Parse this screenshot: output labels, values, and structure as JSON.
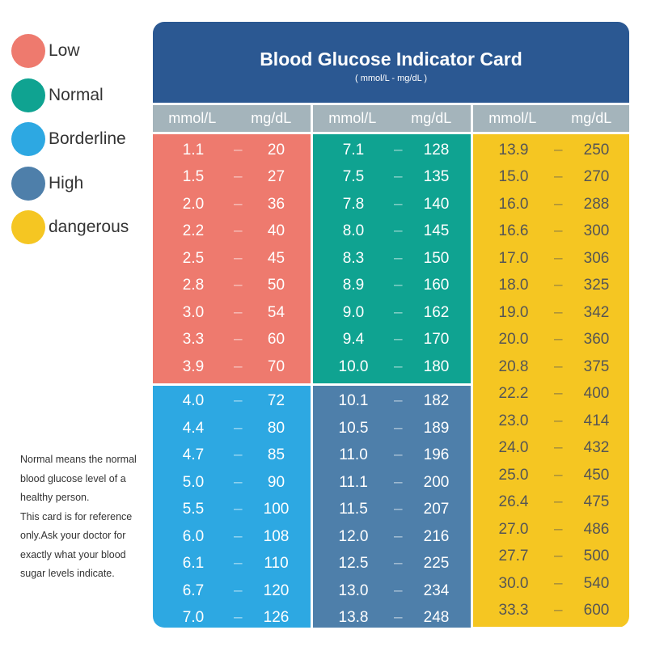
{
  "legend": [
    {
      "label": "Low",
      "color": "#EE7A6E"
    },
    {
      "label": "Normal",
      "color": "#0FA391"
    },
    {
      "label": "Borderline",
      "color": "#2DA8E2"
    },
    {
      "label": "High",
      "color": "#4E7FAA"
    },
    {
      "label": "dangerous",
      "color": "#F5C622"
    }
  ],
  "note": [
    "Normal means the normal blood glucose level of a healthy person.",
    "This card is for reference only.Ask your doctor for exactly what your blood sugar levels indicate."
  ],
  "header": {
    "title": "Blood Glucose Indicator Card",
    "subtitle": "( mmol/L - mg/dL )",
    "color": "#2B5892"
  },
  "column_header": {
    "mmol": "mmol/L",
    "mg": "mg/dL",
    "color": "#A4B4BB"
  },
  "dash": "–",
  "chart_data": {
    "type": "table",
    "title": "Blood Glucose Indicator Card",
    "columns": [
      "mmol/L",
      "mg/dL"
    ],
    "groups": [
      {
        "category": "Low",
        "color": "#EE7A6E",
        "rows": [
          [
            "1.1",
            "20"
          ],
          [
            "1.5",
            "27"
          ],
          [
            "2.0",
            "36"
          ],
          [
            "2.2",
            "40"
          ],
          [
            "2.5",
            "45"
          ],
          [
            "2.8",
            "50"
          ],
          [
            "3.0",
            "54"
          ],
          [
            "3.3",
            "60"
          ],
          [
            "3.9",
            "70"
          ]
        ]
      },
      {
        "category": "Borderline",
        "color": "#2DA8E2",
        "rows": [
          [
            "4.0",
            "72"
          ],
          [
            "4.4",
            "80"
          ],
          [
            "4.7",
            "85"
          ],
          [
            "5.0",
            "90"
          ],
          [
            "5.5",
            "100"
          ],
          [
            "6.0",
            "108"
          ],
          [
            "6.1",
            "110"
          ],
          [
            "6.7",
            "120"
          ],
          [
            "7.0",
            "126"
          ]
        ]
      },
      {
        "category": "Normal",
        "color": "#0FA391",
        "rows": [
          [
            "7.1",
            "128"
          ],
          [
            "7.5",
            "135"
          ],
          [
            "7.8",
            "140"
          ],
          [
            "8.0",
            "145"
          ],
          [
            "8.3",
            "150"
          ],
          [
            "8.9",
            "160"
          ],
          [
            "9.0",
            "162"
          ],
          [
            "9.4",
            "170"
          ],
          [
            "10.0",
            "180"
          ]
        ]
      },
      {
        "category": "High",
        "color": "#4E7FAA",
        "rows": [
          [
            "10.1",
            "182"
          ],
          [
            "10.5",
            "189"
          ],
          [
            "11.0",
            "196"
          ],
          [
            "11.1",
            "200"
          ],
          [
            "11.5",
            "207"
          ],
          [
            "12.0",
            "216"
          ],
          [
            "12.5",
            "225"
          ],
          [
            "13.0",
            "234"
          ],
          [
            "13.8",
            "248"
          ]
        ]
      },
      {
        "category": "dangerous",
        "color": "#F5C622",
        "rows": [
          [
            "13.9",
            "250"
          ],
          [
            "15.0",
            "270"
          ],
          [
            "16.0",
            "288"
          ],
          [
            "16.6",
            "300"
          ],
          [
            "17.0",
            "306"
          ],
          [
            "18.0",
            "325"
          ],
          [
            "19.0",
            "342"
          ],
          [
            "20.0",
            "360"
          ],
          [
            "20.8",
            "375"
          ],
          [
            "22.2",
            "400"
          ],
          [
            "23.0",
            "414"
          ],
          [
            "24.0",
            "432"
          ],
          [
            "25.0",
            "450"
          ],
          [
            "26.4",
            "475"
          ],
          [
            "27.0",
            "486"
          ],
          [
            "27.7",
            "500"
          ],
          [
            "30.0",
            "540"
          ],
          [
            "33.3",
            "600"
          ]
        ]
      }
    ]
  }
}
